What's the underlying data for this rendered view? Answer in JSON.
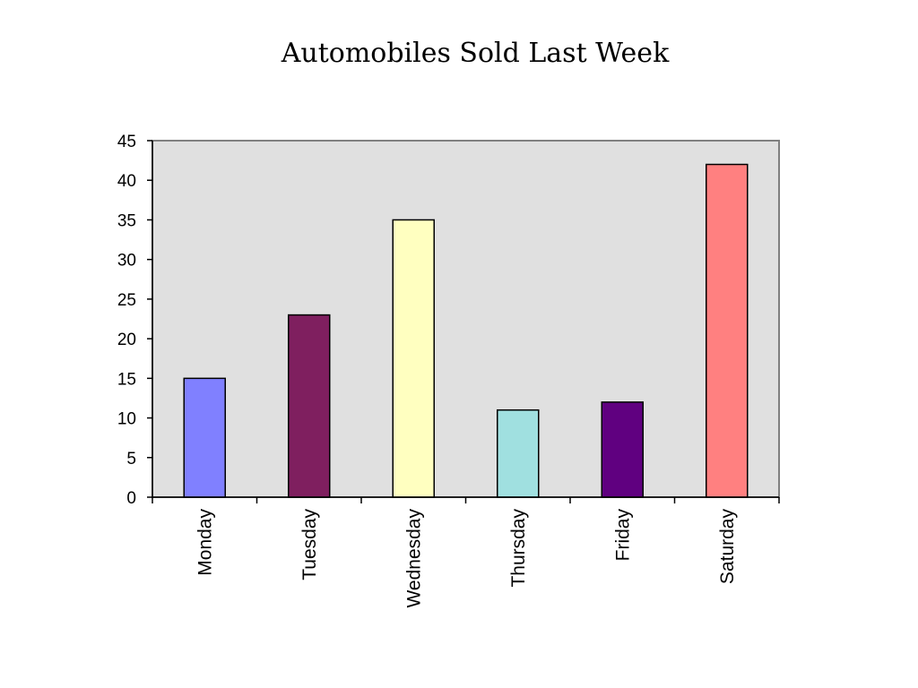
{
  "chart_data": {
    "type": "bar",
    "title": "Automobiles Sold Last Week",
    "xlabel": "",
    "ylabel": "",
    "categories": [
      "Monday",
      "Tuesday",
      "Wednesday",
      "Thursday",
      "Friday",
      "Saturday"
    ],
    "values": [
      15,
      23,
      35,
      11,
      12,
      42
    ],
    "bar_colors": [
      "#8080FF",
      "#7F1F5F",
      "#FFFFC0",
      "#A0E0E0",
      "#600080",
      "#FF8080"
    ],
    "ylim": [
      0,
      45
    ],
    "y_ticks": [
      "0",
      "5",
      "10",
      "15",
      "20",
      "25",
      "30",
      "35",
      "40",
      "45"
    ],
    "grid": false,
    "plot_background": "#E0E0E0",
    "legend": "none"
  }
}
